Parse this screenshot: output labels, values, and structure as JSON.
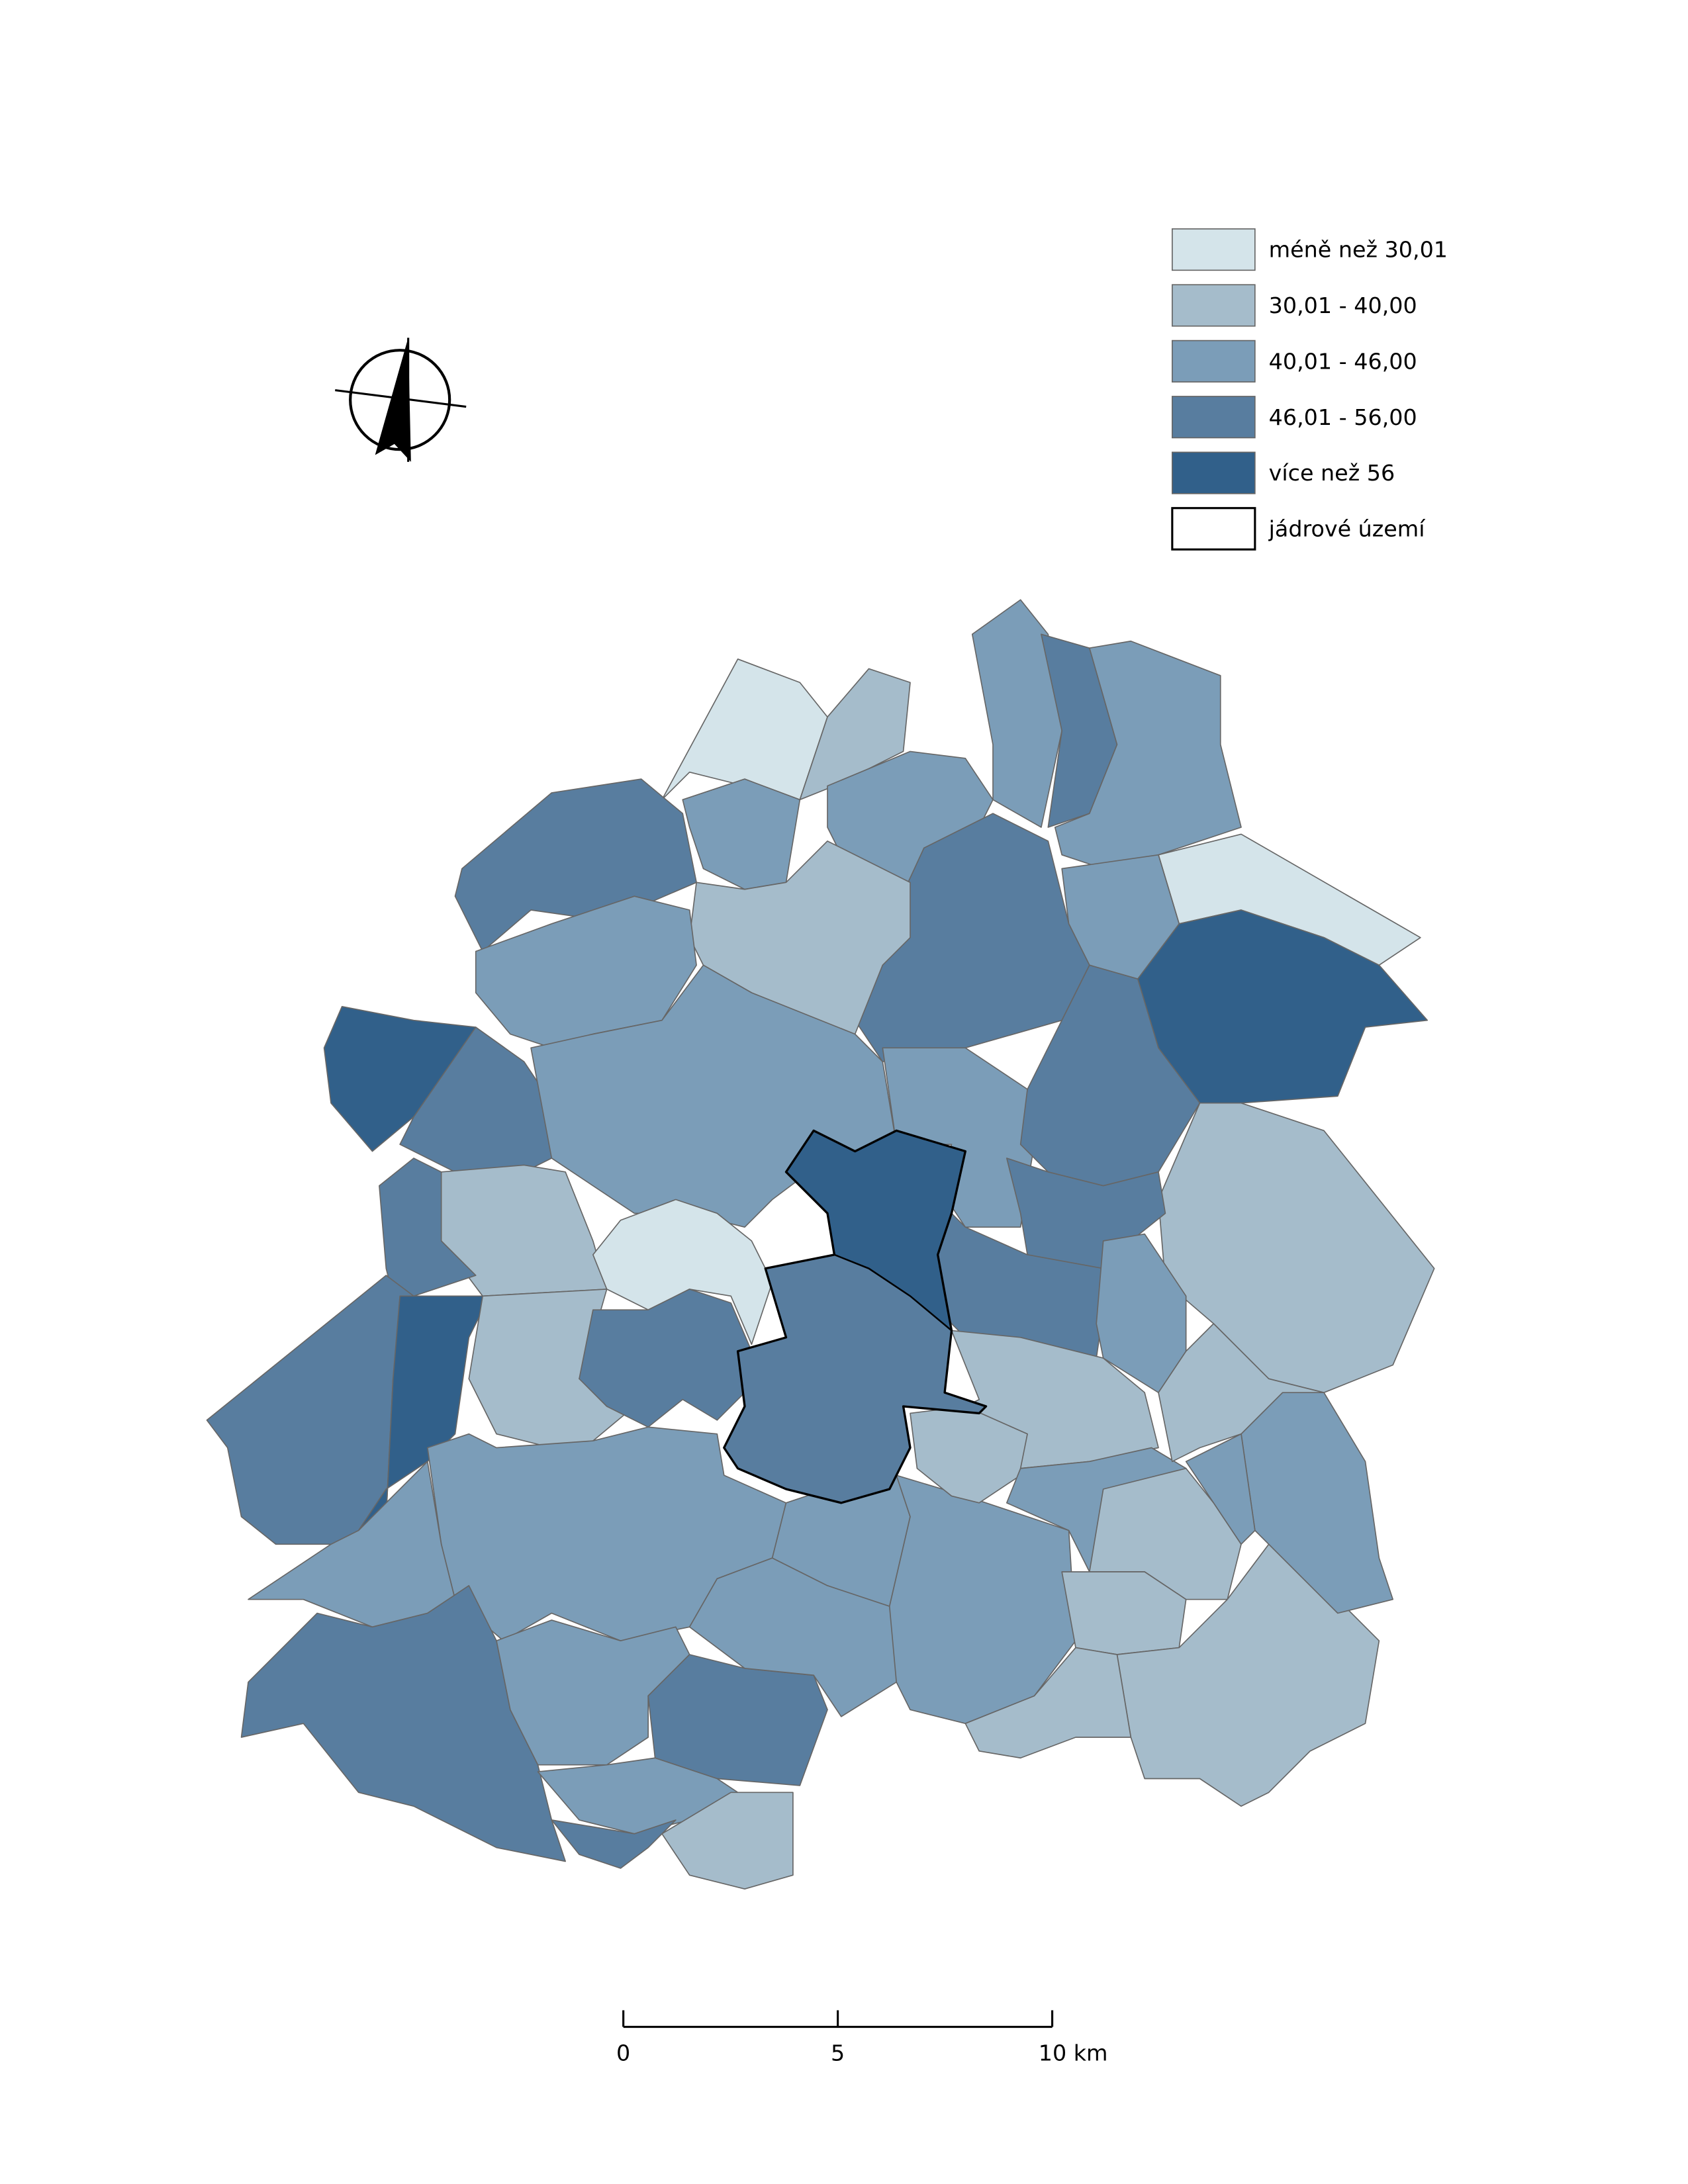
{
  "legend": {
    "items": [
      {
        "label": "méně než 30,01",
        "color": "#d4e4ea"
      },
      {
        "label": "30,01 - 40,00",
        "color": "#a5bccb"
      },
      {
        "label": "40,01 - 46,00",
        "color": "#7b9db8"
      },
      {
        "label": "46,01 - 56,00",
        "color": "#587d9f"
      },
      {
        "label": "více než 56",
        "color": "#31608a"
      },
      {
        "label": "jádrové území",
        "color": "#ffffff",
        "outline": "#000000"
      }
    ]
  },
  "scale_bar": {
    "ticks": [
      0,
      5,
      {
        "value": 10,
        "label": "10 km"
      }
    ]
  }
}
